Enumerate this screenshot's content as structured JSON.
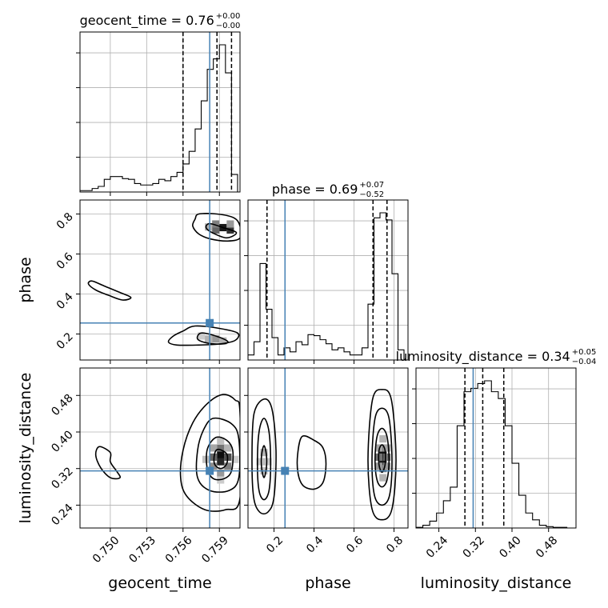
{
  "chart_data": {
    "type": "corner",
    "parameters": [
      "geocent_time",
      "phase",
      "luminosity_distance"
    ],
    "ranges": {
      "geocent_time": [
        0.7475,
        0.7607
      ],
      "phase": [
        0.07,
        0.87
      ],
      "luminosity_distance": [
        0.19,
        0.54
      ]
    },
    "ticks": {
      "geocent_time": [
        "0.750",
        "0.753",
        "0.756",
        "0.759"
      ],
      "phase": [
        "0.2",
        "0.4",
        "0.6",
        "0.8"
      ],
      "luminosity_distance": [
        "0.24",
        "0.32",
        "0.40",
        "0.48"
      ]
    },
    "truths": {
      "geocent_time": 0.7582,
      "phase": 0.255,
      "luminosity_distance": 0.315
    },
    "titles": {
      "geocent_time": {
        "label": "geocent_time",
        "median": "0.76",
        "plus": "+0.00",
        "minus": "−0.00"
      },
      "phase": {
        "label": "phase",
        "median": "0.69",
        "plus": "+0.07",
        "minus": "−0.52"
      },
      "luminosity_distance": {
        "label": "luminosity_distance",
        "median": "0.34",
        "plus": "+0.05",
        "minus": "−0.04"
      }
    },
    "quantiles": {
      "geocent_time": [
        0.756,
        0.7588,
        0.76
      ],
      "phase": [
        0.165,
        0.695,
        0.765
      ],
      "luminosity_distance": [
        0.297,
        0.336,
        0.382
      ]
    },
    "histograms": {
      "geocent_time": {
        "bin_edges": [
          0.7475,
          0.748,
          0.7485,
          0.749,
          0.7495,
          0.75,
          0.7505,
          0.751,
          0.7515,
          0.752,
          0.7525,
          0.753,
          0.7535,
          0.754,
          0.7545,
          0.755,
          0.7555,
          0.756,
          0.7565,
          0.757,
          0.7575,
          0.758,
          0.7585,
          0.759,
          0.7595,
          0.76,
          0.7605
        ],
        "counts": [
          2,
          2,
          5,
          8,
          18,
          22,
          22,
          19,
          18,
          12,
          10,
          10,
          12,
          18,
          16,
          22,
          28,
          40,
          58,
          90,
          130,
          175,
          190,
          210,
          170,
          25
        ]
      },
      "phase": {
        "bin_edges": [
          0.07,
          0.1,
          0.13,
          0.16,
          0.19,
          0.22,
          0.25,
          0.28,
          0.31,
          0.34,
          0.37,
          0.4,
          0.43,
          0.46,
          0.49,
          0.52,
          0.55,
          0.58,
          0.61,
          0.64,
          0.67,
          0.7,
          0.73,
          0.76,
          0.79,
          0.82,
          0.85
        ],
        "counts": [
          5,
          18,
          95,
          50,
          22,
          5,
          12,
          8,
          18,
          15,
          25,
          24,
          20,
          16,
          10,
          12,
          8,
          5,
          5,
          12,
          55,
          140,
          145,
          138,
          85,
          10
        ]
      },
      "luminosity_distance": {
        "bin_edges": [
          0.19,
          0.205,
          0.22,
          0.235,
          0.25,
          0.265,
          0.28,
          0.295,
          0.31,
          0.325,
          0.34,
          0.355,
          0.37,
          0.385,
          0.4,
          0.415,
          0.43,
          0.445,
          0.46,
          0.475,
          0.49,
          0.505,
          0.52
        ],
        "counts": [
          1,
          4,
          10,
          22,
          40,
          60,
          150,
          200,
          205,
          212,
          216,
          200,
          190,
          150,
          95,
          48,
          22,
          12,
          4,
          2,
          1,
          1
        ]
      }
    },
    "contours_2d": [
      {
        "x": "geocent_time",
        "y": "phase",
        "levels": [
          [
            [
              0.7582,
              0.752
            ],
            [
              0.7593,
              0.732
            ],
            [
              0.7604,
              0.707
            ],
            [
              0.7596,
              0.681
            ],
            [
              0.7584,
              0.707
            ],
            [
              0.7579,
              0.732
            ]
          ],
          [
            [
              0.7573,
              0.8
            ],
            [
              0.7588,
              0.8
            ],
            [
              0.7602,
              0.781
            ],
            [
              0.7607,
              0.74
            ],
            [
              0.7607,
              0.68
            ],
            [
              0.7597,
              0.665
            ],
            [
              0.7583,
              0.675
            ],
            [
              0.7573,
              0.7
            ],
            [
              0.7568,
              0.74
            ],
            [
              0.757,
              0.775
            ]
          ],
          [
            [
              0.7485,
              0.465
            ],
            [
              0.7495,
              0.44
            ],
            [
              0.7507,
              0.41
            ],
            [
              0.7517,
              0.383
            ],
            [
              0.751,
              0.37
            ],
            [
              0.7498,
              0.395
            ],
            [
              0.7488,
              0.42
            ],
            [
              0.7482,
              0.45
            ]
          ],
          [
            [
              0.7575,
              0.205
            ],
            [
              0.7588,
              0.188
            ],
            [
              0.7597,
              0.162
            ],
            [
              0.7592,
              0.15
            ],
            [
              0.758,
              0.155
            ],
            [
              0.7572,
              0.175
            ]
          ],
          [
            [
              0.757,
              0.24
            ],
            [
              0.759,
              0.228
            ],
            [
              0.7605,
              0.205
            ],
            [
              0.7603,
              0.168
            ],
            [
              0.759,
              0.15
            ],
            [
              0.7573,
              0.145
            ],
            [
              0.7555,
              0.145
            ],
            [
              0.7548,
              0.16
            ],
            [
              0.7552,
              0.19
            ],
            [
              0.756,
              0.215
            ]
          ]
        ]
      },
      {
        "x": "geocent_time",
        "y": "luminosity_distance",
        "levels": [
          [
            [
              0.7589,
              0.362
            ],
            [
              0.7596,
              0.352
            ],
            [
              0.7596,
              0.33
            ],
            [
              0.7591,
              0.32
            ],
            [
              0.7586,
              0.33
            ],
            [
              0.7586,
              0.352
            ]
          ],
          [
            [
              0.7587,
              0.388
            ],
            [
              0.7596,
              0.382
            ],
            [
              0.7601,
              0.36
            ],
            [
              0.76,
              0.315
            ],
            [
              0.7594,
              0.298
            ],
            [
              0.7585,
              0.298
            ],
            [
              0.758,
              0.32
            ],
            [
              0.758,
              0.362
            ]
          ],
          [
            [
              0.7585,
              0.43
            ],
            [
              0.76,
              0.418
            ],
            [
              0.7606,
              0.385
            ],
            [
              0.7606,
              0.3
            ],
            [
              0.7598,
              0.272
            ],
            [
              0.7582,
              0.272
            ],
            [
              0.7572,
              0.3
            ],
            [
              0.7572,
              0.36
            ],
            [
              0.7577,
              0.405
            ]
          ],
          [
            [
              0.7593,
              0.482
            ],
            [
              0.7603,
              0.47
            ],
            [
              0.7607,
              0.442
            ],
            [
              0.7607,
              0.255
            ],
            [
              0.7595,
              0.23
            ],
            [
              0.7578,
              0.23
            ],
            [
              0.7563,
              0.26
            ],
            [
              0.7558,
              0.3
            ],
            [
              0.756,
              0.36
            ],
            [
              0.7568,
              0.42
            ],
            [
              0.758,
              0.462
            ]
          ],
          [
            [
              0.7491,
              0.368
            ],
            [
              0.75,
              0.355
            ],
            [
              0.75,
              0.335
            ],
            [
              0.7505,
              0.315
            ],
            [
              0.7508,
              0.3
            ],
            [
              0.75,
              0.3
            ],
            [
              0.7492,
              0.322
            ],
            [
              0.7488,
              0.35
            ]
          ]
        ]
      },
      {
        "x": "phase",
        "y": "luminosity_distance",
        "levels": [
          [
            [
              0.74,
              0.372
            ],
            [
              0.755,
              0.36
            ],
            [
              0.755,
              0.328
            ],
            [
              0.74,
              0.312
            ],
            [
              0.725,
              0.328
            ],
            [
              0.725,
              0.36
            ]
          ],
          [
            [
              0.74,
              0.408
            ],
            [
              0.765,
              0.39
            ],
            [
              0.775,
              0.34
            ],
            [
              0.765,
              0.295
            ],
            [
              0.74,
              0.28
            ],
            [
              0.715,
              0.295
            ],
            [
              0.705,
              0.34
            ],
            [
              0.715,
              0.39
            ]
          ],
          [
            [
              0.74,
              0.452
            ],
            [
              0.775,
              0.43
            ],
            [
              0.79,
              0.34
            ],
            [
              0.778,
              0.262
            ],
            [
              0.74,
              0.24
            ],
            [
              0.702,
              0.262
            ],
            [
              0.69,
              0.34
            ],
            [
              0.705,
              0.43
            ]
          ],
          [
            [
              0.74,
              0.493
            ],
            [
              0.787,
              0.47
            ],
            [
              0.81,
              0.34
            ],
            [
              0.79,
              0.232
            ],
            [
              0.74,
              0.208
            ],
            [
              0.69,
              0.232
            ],
            [
              0.67,
              0.34
            ],
            [
              0.692,
              0.47
            ]
          ],
          [
            [
              0.15,
              0.37
            ],
            [
              0.162,
              0.35
            ],
            [
              0.162,
              0.322
            ],
            [
              0.15,
              0.3
            ],
            [
              0.138,
              0.322
            ],
            [
              0.138,
              0.35
            ]
          ],
          [
            [
              0.15,
              0.43
            ],
            [
              0.175,
              0.4
            ],
            [
              0.183,
              0.33
            ],
            [
              0.175,
              0.272
            ],
            [
              0.15,
              0.252
            ],
            [
              0.125,
              0.272
            ],
            [
              0.117,
              0.33
            ],
            [
              0.125,
              0.4
            ]
          ],
          [
            [
              0.15,
              0.472
            ],
            [
              0.19,
              0.45
            ],
            [
              0.21,
              0.36
            ],
            [
              0.2,
              0.258
            ],
            [
              0.17,
              0.225
            ],
            [
              0.128,
              0.225
            ],
            [
              0.098,
              0.258
            ],
            [
              0.09,
              0.345
            ],
            [
              0.1,
              0.44
            ]
          ],
          [
            [
              0.34,
              0.39
            ],
            [
              0.4,
              0.382
            ],
            [
              0.445,
              0.365
            ],
            [
              0.46,
              0.33
            ],
            [
              0.445,
              0.29
            ],
            [
              0.4,
              0.275
            ],
            [
              0.345,
              0.283
            ],
            [
              0.32,
              0.31
            ],
            [
              0.318,
              0.35
            ]
          ]
        ]
      }
    ],
    "density_cells_2d": [
      {
        "x": "geocent_time",
        "y": "phase",
        "cells": [
          [
            0.7593,
            0.732,
            0.9
          ],
          [
            0.7599,
            0.72,
            0.8
          ],
          [
            0.7587,
            0.72,
            0.6
          ],
          [
            0.7587,
            0.75,
            0.5
          ],
          [
            0.7599,
            0.75,
            0.4
          ],
          [
            0.7581,
            0.735,
            0.3
          ],
          [
            0.7587,
            0.175,
            0.4
          ],
          [
            0.7581,
            0.175,
            0.3
          ],
          [
            0.7593,
            0.165,
            0.3
          ],
          [
            0.7575,
            0.19,
            0.2
          ]
        ]
      },
      {
        "x": "geocent_time",
        "y": "luminosity_distance",
        "cells": [
          [
            0.7591,
            0.35,
            0.95
          ],
          [
            0.7591,
            0.335,
            0.85
          ],
          [
            0.7597,
            0.345,
            0.7
          ],
          [
            0.7585,
            0.345,
            0.6
          ],
          [
            0.7585,
            0.325,
            0.45
          ],
          [
            0.7597,
            0.325,
            0.5
          ],
          [
            0.7591,
            0.365,
            0.55
          ],
          [
            0.7591,
            0.31,
            0.4
          ],
          [
            0.7585,
            0.365,
            0.35
          ],
          [
            0.7597,
            0.365,
            0.3
          ],
          [
            0.7579,
            0.34,
            0.25
          ],
          [
            0.7603,
            0.34,
            0.2
          ],
          [
            0.7591,
            0.38,
            0.25
          ],
          [
            0.7591,
            0.295,
            0.2
          ]
        ]
      },
      {
        "x": "phase",
        "y": "luminosity_distance",
        "cells": [
          [
            0.745,
            0.35,
            0.95
          ],
          [
            0.745,
            0.335,
            0.9
          ],
          [
            0.725,
            0.345,
            0.55
          ],
          [
            0.765,
            0.345,
            0.55
          ],
          [
            0.745,
            0.365,
            0.6
          ],
          [
            0.745,
            0.32,
            0.55
          ],
          [
            0.725,
            0.325,
            0.4
          ],
          [
            0.765,
            0.325,
            0.4
          ],
          [
            0.725,
            0.365,
            0.35
          ],
          [
            0.765,
            0.365,
            0.35
          ],
          [
            0.745,
            0.3,
            0.3
          ],
          [
            0.745,
            0.385,
            0.3
          ],
          [
            0.15,
            0.335,
            0.35
          ],
          [
            0.15,
            0.355,
            0.3
          ],
          [
            0.15,
            0.315,
            0.25
          ],
          [
            0.17,
            0.335,
            0.2
          ],
          [
            0.13,
            0.335,
            0.2
          ]
        ]
      }
    ],
    "xlabels": [
      "geocent_time",
      "phase",
      "luminosity_distance"
    ],
    "ylabels": [
      "phase",
      "luminosity_distance"
    ]
  }
}
